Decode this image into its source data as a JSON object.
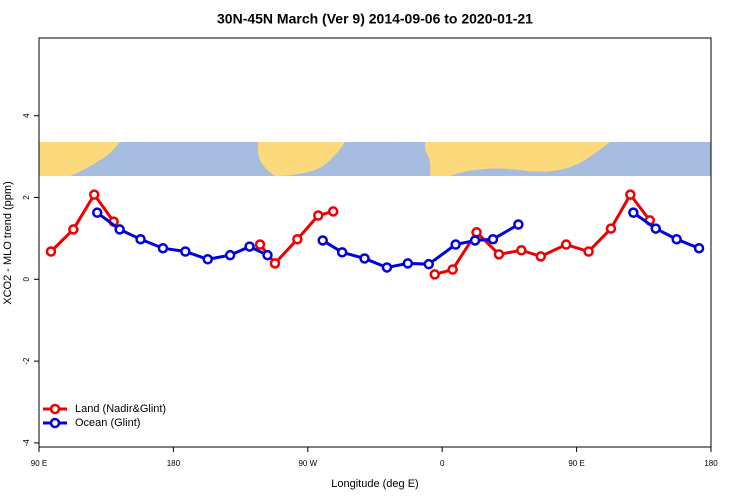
{
  "chart_data": {
    "type": "line",
    "title": "30N-45N March (Ver 9)   2014-09-06 to 2020-01-21",
    "xlabel": "Longitude (deg E)",
    "ylabel": "XCO2 - MLO trend (ppm)",
    "xlim": [
      90,
      540
    ],
    "xticks": [
      {
        "value": 90,
        "label": "90 E"
      },
      {
        "value": 180,
        "label": "180"
      },
      {
        "value": 270,
        "label": "90 W"
      },
      {
        "value": 360,
        "label": "0"
      },
      {
        "value": 450,
        "label": "90 E"
      },
      {
        "value": 540,
        "label": "180"
      }
    ],
    "ylim": [
      -4.1,
      5.9
    ],
    "yticks": [
      -4,
      -2,
      0,
      2,
      4
    ],
    "legend": "bottom-left",
    "series": [
      {
        "name": "Land (Nadir&Glint)",
        "color": "#ee0000",
        "x": [
          98,
          113,
          127,
          140,
          null,
          238,
          248,
          263,
          277,
          287,
          null,
          355,
          367,
          383,
          398,
          413,
          426,
          443,
          458,
          473,
          486,
          499
        ],
        "values": [
          0.68,
          1.22,
          2.07,
          1.41,
          null,
          0.85,
          0.39,
          0.98,
          1.56,
          1.66,
          null,
          0.12,
          0.24,
          1.15,
          0.61,
          0.71,
          0.56,
          0.85,
          0.68,
          1.24,
          2.07,
          1.44
        ]
      },
      {
        "name": "Ocean (Glint)",
        "color": "#0000dd",
        "x": [
          129,
          144,
          158,
          173,
          188,
          203,
          218,
          231,
          243,
          null,
          280,
          293,
          308,
          323,
          337,
          351,
          369,
          382,
          394,
          411,
          null,
          488,
          503,
          517,
          532
        ],
        "values": [
          1.63,
          1.22,
          0.98,
          0.76,
          0.68,
          0.49,
          0.59,
          0.8,
          0.59,
          null,
          0.95,
          0.66,
          0.51,
          0.29,
          0.39,
          0.37,
          0.85,
          0.95,
          0.98,
          1.34,
          null,
          1.63,
          1.24,
          0.98,
          0.76
        ]
      }
    ]
  }
}
